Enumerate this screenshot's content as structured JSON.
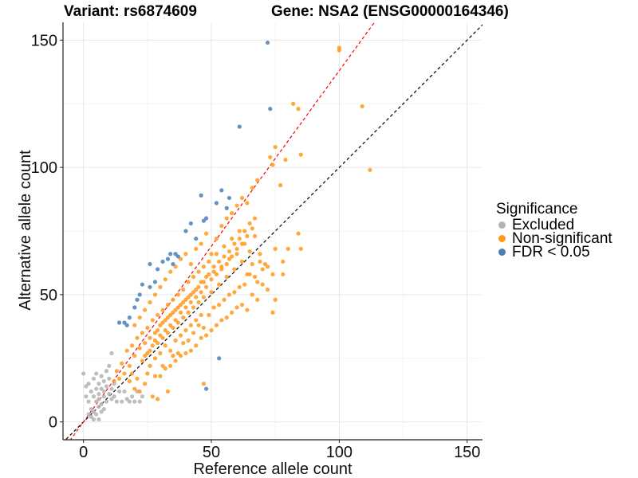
{
  "header": {
    "variant_text": "Variant: rs6874609",
    "gene_text": "Gene: NSA2 (ENSG00000164346)"
  },
  "legend": {
    "title": "Significance",
    "items": [
      {
        "label": "Excluded",
        "color": "#b3b3b3"
      },
      {
        "label": "Non-significant",
        "color": "#ff9a1a"
      },
      {
        "label": "FDR < 0.05",
        "color": "#4a7eb8"
      }
    ]
  },
  "chart_data": {
    "type": "scatter",
    "title": "Variant: rs6874609    Gene: NSA2 (ENSG00000164346)",
    "xlabel": "Reference allele count",
    "ylabel": "Alternative allele count",
    "xlim": [
      -8,
      156
    ],
    "ylim": [
      -7,
      157
    ],
    "xticks": [
      0,
      50,
      100,
      150
    ],
    "yticks": [
      0,
      50,
      100,
      150
    ],
    "grid": true,
    "legend_position": "right",
    "reference_lines": [
      {
        "name": "identity",
        "slope": 1.0,
        "intercept": 0,
        "color": "#000000",
        "style": "dashed"
      },
      {
        "name": "fit",
        "slope": 1.38,
        "intercept": 0,
        "color": "#ff0000",
        "style": "dashed"
      }
    ],
    "series": [
      {
        "name": "Excluded",
        "color": "#b3b3b3",
        "points": [
          [
            0,
            19
          ],
          [
            1,
            14
          ],
          [
            1,
            10
          ],
          [
            2,
            8
          ],
          [
            2,
            15
          ],
          [
            3,
            12
          ],
          [
            3,
            5
          ],
          [
            3,
            2
          ],
          [
            4,
            17
          ],
          [
            4,
            10
          ],
          [
            4,
            1
          ],
          [
            5,
            13
          ],
          [
            5,
            8
          ],
          [
            5,
            3
          ],
          [
            5,
            19
          ],
          [
            6,
            11
          ],
          [
            6,
            6
          ],
          [
            6,
            15
          ],
          [
            6,
            9
          ],
          [
            7,
            13
          ],
          [
            7,
            4
          ],
          [
            7,
            18
          ],
          [
            7,
            7
          ],
          [
            8,
            10
          ],
          [
            8,
            16
          ],
          [
            8,
            12
          ],
          [
            9,
            8
          ],
          [
            9,
            20
          ],
          [
            9,
            14
          ],
          [
            10,
            11
          ],
          [
            10,
            22
          ],
          [
            10,
            17
          ],
          [
            11,
            13
          ],
          [
            11,
            9
          ],
          [
            11,
            27
          ],
          [
            12,
            15
          ],
          [
            12,
            10
          ],
          [
            13,
            8
          ],
          [
            14,
            12
          ],
          [
            15,
            8
          ],
          [
            16,
            12
          ],
          [
            17,
            9
          ],
          [
            18,
            8
          ],
          [
            19,
            10
          ],
          [
            20,
            8
          ],
          [
            21,
            12
          ],
          [
            22,
            8
          ],
          [
            23,
            10
          ],
          [
            6,
            1
          ],
          [
            4,
            4
          ],
          [
            2,
            3
          ],
          [
            8,
            5
          ]
        ]
      },
      {
        "name": "Non-significant",
        "color": "#ff9a1a",
        "points": [
          [
            15,
            23
          ],
          [
            17,
            28
          ],
          [
            18,
            22
          ],
          [
            19,
            30
          ],
          [
            20,
            26
          ],
          [
            21,
            33
          ],
          [
            22,
            29
          ],
          [
            23,
            35
          ],
          [
            23,
            24
          ],
          [
            24,
            31
          ],
          [
            25,
            37
          ],
          [
            25,
            27
          ],
          [
            26,
            33
          ],
          [
            26,
            22
          ],
          [
            27,
            40
          ],
          [
            27,
            30
          ],
          [
            28,
            35
          ],
          [
            28,
            25
          ],
          [
            29,
            42
          ],
          [
            29,
            31
          ],
          [
            30,
            38
          ],
          [
            30,
            27
          ],
          [
            31,
            44
          ],
          [
            31,
            33
          ],
          [
            32,
            40
          ],
          [
            32,
            30
          ],
          [
            33,
            46
          ],
          [
            33,
            35
          ],
          [
            34,
            42
          ],
          [
            34,
            28
          ],
          [
            35,
            48
          ],
          [
            35,
            37
          ],
          [
            36,
            44
          ],
          [
            36,
            32
          ],
          [
            37,
            50
          ],
          [
            37,
            39
          ],
          [
            38,
            46
          ],
          [
            38,
            34
          ],
          [
            39,
            52
          ],
          [
            39,
            41
          ],
          [
            40,
            48
          ],
          [
            40,
            36
          ],
          [
            41,
            55
          ],
          [
            41,
            43
          ],
          [
            42,
            50
          ],
          [
            42,
            38
          ],
          [
            43,
            57
          ],
          [
            43,
            45
          ],
          [
            44,
            52
          ],
          [
            44,
            40
          ],
          [
            45,
            59
          ],
          [
            45,
            47
          ],
          [
            46,
            55
          ],
          [
            46,
            42
          ],
          [
            47,
            61
          ],
          [
            47,
            49
          ],
          [
            48,
            57
          ],
          [
            49,
            63
          ],
          [
            50,
            51
          ],
          [
            51,
            59
          ],
          [
            52,
            66
          ],
          [
            53,
            54
          ],
          [
            54,
            61
          ],
          [
            55,
            69
          ],
          [
            56,
            57
          ],
          [
            57,
            64
          ],
          [
            58,
            72
          ],
          [
            59,
            60
          ],
          [
            60,
            66
          ],
          [
            61,
            75
          ],
          [
            62,
            63
          ],
          [
            63,
            70
          ],
          [
            64,
            58
          ],
          [
            65,
            67
          ],
          [
            66,
            62
          ],
          [
            67,
            73
          ],
          [
            68,
            55
          ],
          [
            69,
            66
          ],
          [
            70,
            60
          ],
          [
            72,
            52
          ],
          [
            74,
            43
          ],
          [
            78,
            58
          ],
          [
            75,
            48
          ],
          [
            78,
            63
          ],
          [
            80,
            68
          ],
          [
            85,
            68
          ],
          [
            84,
            74
          ],
          [
            75,
            68
          ],
          [
            72,
            61
          ],
          [
            68,
            48
          ],
          [
            64,
            44
          ],
          [
            60,
            45
          ],
          [
            56,
            41
          ],
          [
            52,
            38
          ],
          [
            48,
            34
          ],
          [
            44,
            30
          ],
          [
            40,
            27
          ],
          [
            36,
            24
          ],
          [
            32,
            21
          ],
          [
            28,
            18
          ],
          [
            24,
            15
          ],
          [
            20,
            13
          ],
          [
            18,
            16
          ],
          [
            16,
            19
          ],
          [
            14,
            17
          ],
          [
            13,
            20
          ],
          [
            12,
            16
          ],
          [
            20,
            38
          ],
          [
            22,
            41
          ],
          [
            24,
            44
          ],
          [
            26,
            47
          ],
          [
            28,
            50
          ],
          [
            30,
            53
          ],
          [
            32,
            56
          ],
          [
            34,
            59
          ],
          [
            36,
            61
          ],
          [
            38,
            64
          ],
          [
            40,
            66
          ],
          [
            42,
            62
          ],
          [
            44,
            68
          ],
          [
            46,
            70
          ],
          [
            48,
            74
          ],
          [
            50,
            66
          ],
          [
            52,
            72
          ],
          [
            54,
            77
          ],
          [
            56,
            80
          ],
          [
            58,
            82
          ],
          [
            60,
            85
          ],
          [
            62,
            88
          ],
          [
            64,
            86
          ],
          [
            66,
            92
          ],
          [
            68,
            95
          ],
          [
            30,
            18
          ],
          [
            34,
            22
          ],
          [
            38,
            26
          ],
          [
            42,
            28
          ],
          [
            46,
            33
          ],
          [
            50,
            36
          ],
          [
            54,
            40
          ],
          [
            58,
            43
          ],
          [
            62,
            46
          ],
          [
            66,
            50
          ],
          [
            70,
            54
          ],
          [
            74,
            58
          ],
          [
            74,
            101
          ],
          [
            73,
            104
          ],
          [
            75,
            108
          ],
          [
            79,
            103
          ],
          [
            77,
            93
          ],
          [
            85,
            105
          ],
          [
            82,
            125
          ],
          [
            84,
            123
          ],
          [
            100,
            147
          ],
          [
            100,
            146
          ],
          [
            109,
            124
          ],
          [
            112,
            99
          ],
          [
            27,
            10
          ],
          [
            29,
            9
          ],
          [
            33,
            12
          ],
          [
            47,
            15
          ],
          [
            22,
            12
          ],
          [
            25,
            19
          ],
          [
            19,
            19
          ],
          [
            21,
            17
          ],
          [
            35,
            26
          ],
          [
            39,
            31
          ],
          [
            43,
            35
          ],
          [
            47,
            37
          ],
          [
            51,
            45
          ],
          [
            55,
            48
          ],
          [
            59,
            51
          ],
          [
            63,
            54
          ],
          [
            67,
            57
          ],
          [
            71,
            62
          ],
          [
            31,
            22
          ],
          [
            37,
            27
          ],
          [
            41,
            32
          ],
          [
            45,
            38
          ],
          [
            49,
            42
          ],
          [
            53,
            46
          ],
          [
            57,
            50
          ],
          [
            61,
            53
          ],
          [
            65,
            58
          ],
          [
            69,
            63
          ],
          [
            24,
            26
          ],
          [
            26,
            28
          ],
          [
            28,
            32
          ],
          [
            30,
            34
          ],
          [
            32,
            36
          ],
          [
            34,
            38
          ],
          [
            36,
            40
          ],
          [
            38,
            43
          ],
          [
            40,
            45
          ],
          [
            42,
            47
          ],
          [
            44,
            49
          ],
          [
            46,
            51
          ],
          [
            48,
            53
          ],
          [
            50,
            56
          ],
          [
            52,
            58
          ],
          [
            54,
            60
          ],
          [
            56,
            62
          ],
          [
            58,
            65
          ],
          [
            60,
            68
          ],
          [
            62,
            70
          ],
          [
            64,
            73
          ],
          [
            66,
            76
          ],
          [
            29,
            36
          ],
          [
            31,
            39
          ],
          [
            33,
            41
          ],
          [
            35,
            43
          ],
          [
            37,
            45
          ],
          [
            39,
            47
          ],
          [
            41,
            49
          ],
          [
            43,
            51
          ],
          [
            45,
            53
          ],
          [
            47,
            55
          ],
          [
            49,
            58
          ],
          [
            51,
            61
          ],
          [
            53,
            63
          ],
          [
            55,
            65
          ],
          [
            57,
            67
          ],
          [
            59,
            70
          ],
          [
            61,
            72
          ],
          [
            63,
            75
          ],
          [
            65,
            78
          ],
          [
            67,
            80
          ]
        ]
      },
      {
        "name": "FDR < 0.05",
        "color": "#4a7eb8",
        "points": [
          [
            72,
            149
          ],
          [
            73,
            123
          ],
          [
            61,
            116
          ],
          [
            52,
            86
          ],
          [
            46,
            89
          ],
          [
            54,
            91
          ],
          [
            47,
            79
          ],
          [
            42,
            78
          ],
          [
            40,
            75
          ],
          [
            34,
            66
          ],
          [
            33,
            64
          ],
          [
            31,
            63
          ],
          [
            29,
            60
          ],
          [
            26,
            62
          ],
          [
            23,
            54
          ],
          [
            22,
            50
          ],
          [
            21,
            48
          ],
          [
            20,
            45
          ],
          [
            16,
            39
          ],
          [
            14,
            39
          ],
          [
            18,
            41
          ],
          [
            17,
            38
          ],
          [
            35,
            62
          ],
          [
            37,
            65
          ],
          [
            57,
            88
          ],
          [
            56,
            84
          ],
          [
            44,
            72
          ],
          [
            48,
            80
          ],
          [
            26,
            53
          ],
          [
            28,
            55
          ],
          [
            48,
            13
          ],
          [
            53,
            25
          ],
          [
            36,
            66
          ]
        ]
      }
    ]
  }
}
